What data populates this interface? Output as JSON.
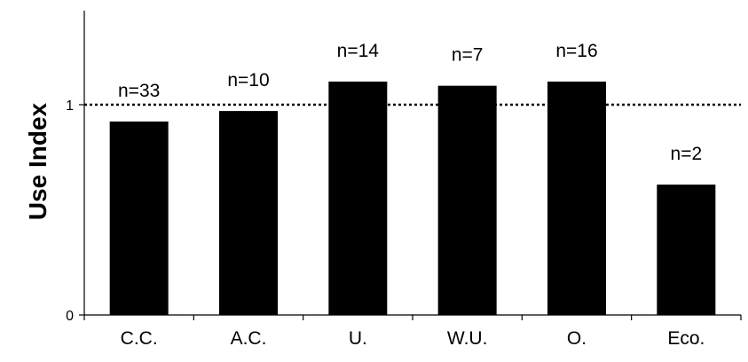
{
  "chart_data": {
    "type": "bar",
    "title": "",
    "xlabel": "",
    "ylabel": "Use Index",
    "categories": [
      "C.C.",
      "A.C.",
      "U.",
      "W.U.",
      "O.",
      "Eco."
    ],
    "values": [
      0.92,
      0.97,
      1.11,
      1.09,
      1.11,
      0.62
    ],
    "annotations": [
      "n=33",
      "n=10",
      "n=14",
      "n=7",
      "n=16",
      "n=2"
    ],
    "yticks": [
      0,
      1
    ],
    "ylim": [
      0,
      1.37
    ],
    "reference_line": {
      "y": 1,
      "style": "dotted"
    },
    "grid": false,
    "legend": "none",
    "colors": {
      "bar": "#000000",
      "axis": "#000000",
      "reference": "#000000"
    }
  }
}
